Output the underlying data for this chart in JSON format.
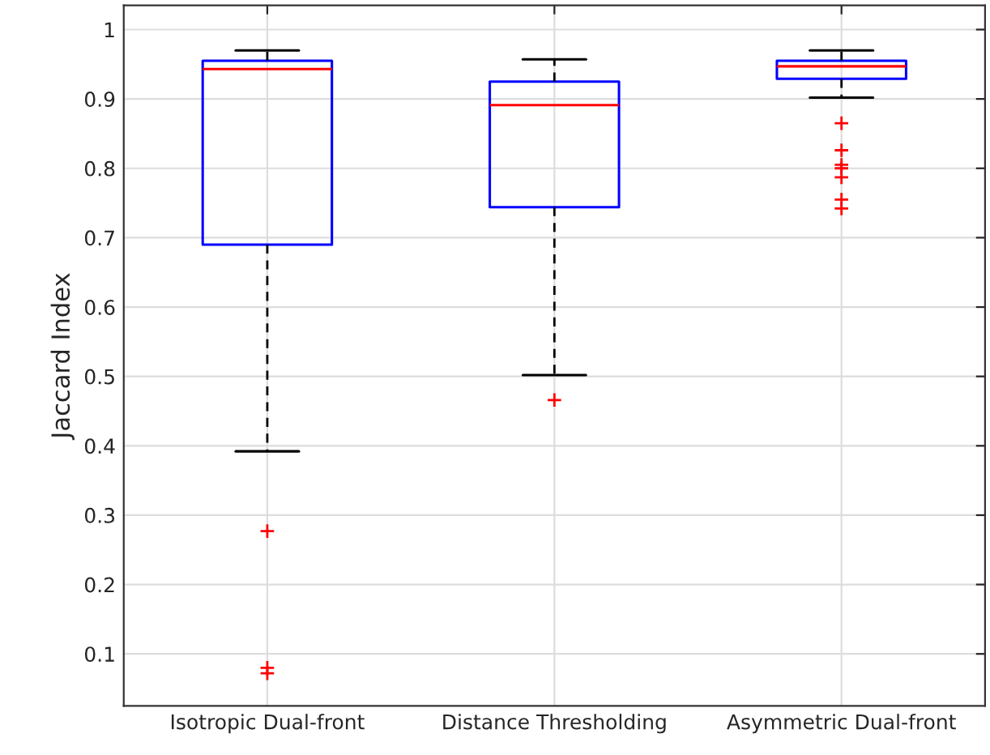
{
  "chart_data": {
    "type": "box",
    "ylabel": "Jaccard Index",
    "categories": [
      "Isotropic Dual-front",
      "Distance Thresholding",
      "Asymmetric Dual-front"
    ],
    "boxes": [
      {
        "low": 0.392,
        "q1": 0.69,
        "median": 0.943,
        "q3": 0.955,
        "high": 0.97,
        "outliers": [
          0.277,
          0.08,
          0.072
        ]
      },
      {
        "low": 0.502,
        "q1": 0.744,
        "median": 0.891,
        "q3": 0.925,
        "high": 0.957,
        "outliers": [
          0.466
        ]
      },
      {
        "low": 0.902,
        "q1": 0.929,
        "median": 0.947,
        "q3": 0.955,
        "high": 0.97,
        "outliers": [
          0.865,
          0.826,
          0.805,
          0.8,
          0.787,
          0.755,
          0.742
        ]
      }
    ],
    "color": "#0000ff",
    "ylim": [
      0.025,
      1.035
    ],
    "yticks": [
      0.1,
      0.2,
      0.3,
      0.4,
      0.5,
      0.6,
      0.7,
      0.8,
      0.9,
      1
    ],
    "grid": true
  }
}
